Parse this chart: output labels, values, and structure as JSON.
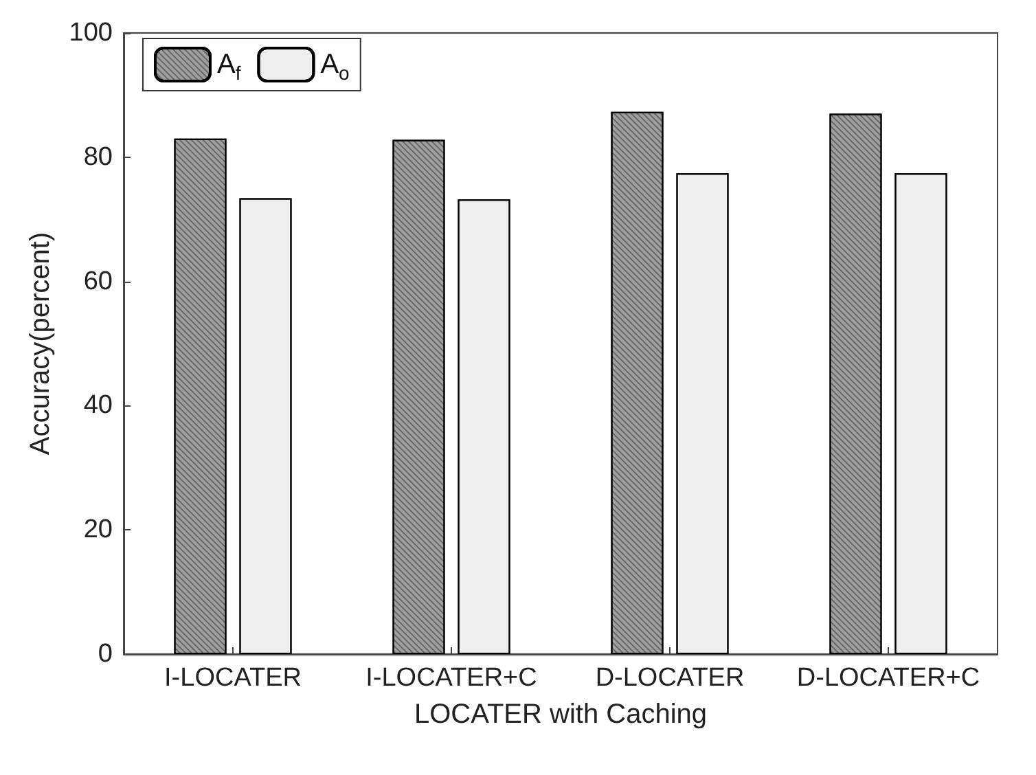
{
  "chart_data": {
    "type": "bar",
    "xlabel": "LOCATER with Caching",
    "ylabel": "Accuracy(percent)",
    "categories": [
      "I-LOCATER",
      "I-LOCATER+C",
      "D-LOCATER",
      "D-LOCATER+C"
    ],
    "series": [
      {
        "name": "A$_{f}$",
        "color": "#a0a0a0",
        "values": [
          83.0,
          82.8,
          87.3,
          87.0
        ]
      },
      {
        "name": "A$_{o}$",
        "color": "#eeeeee",
        "values": [
          73.4,
          73.2,
          77.4,
          77.4
        ]
      }
    ],
    "ylim": [
      0,
      100
    ],
    "yticks": [
      0,
      20,
      40,
      60,
      80,
      100
    ],
    "grid": false,
    "legend": "top left"
  }
}
